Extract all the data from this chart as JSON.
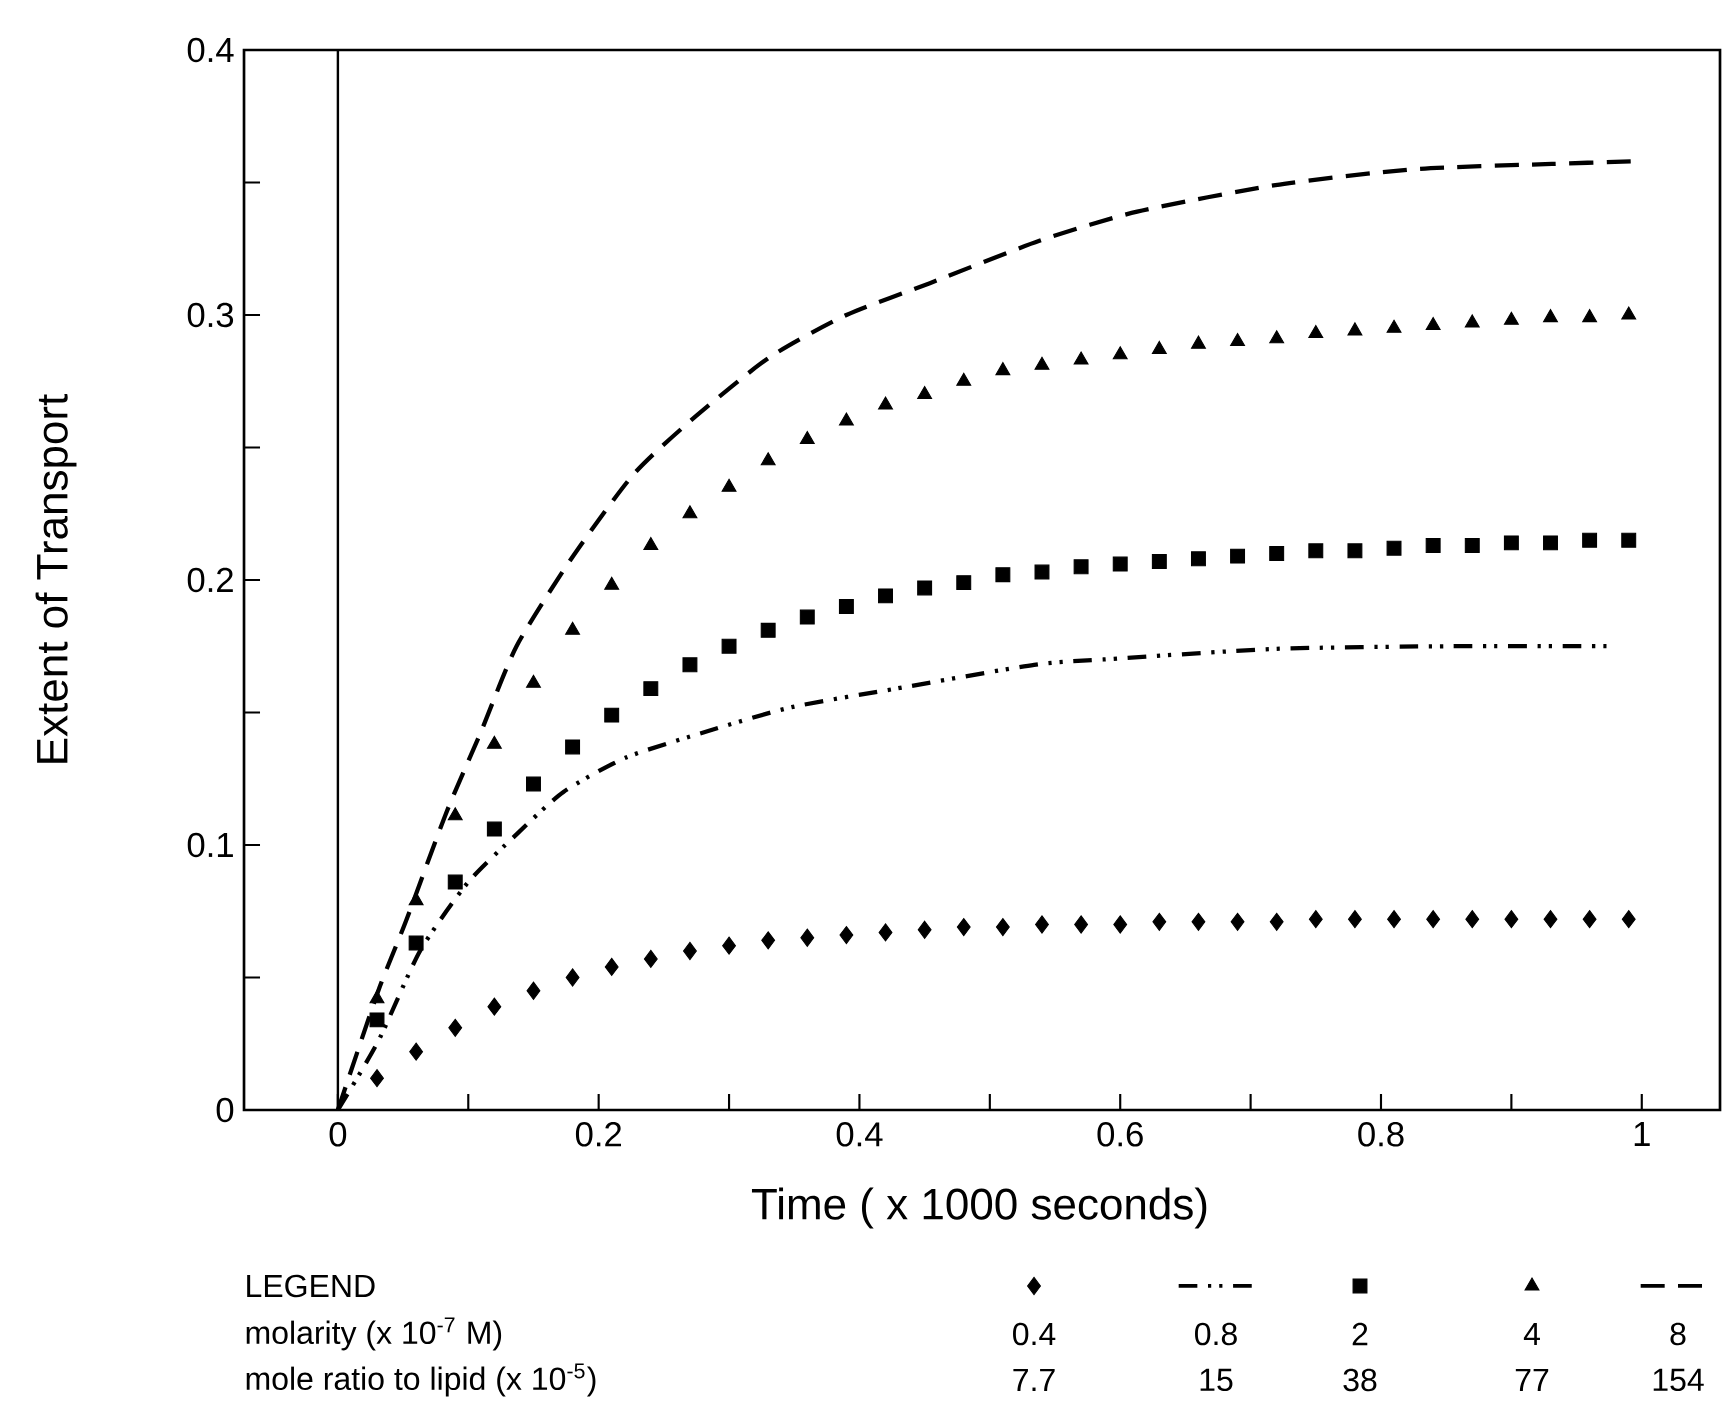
{
  "chart_data": {
    "type": "line",
    "xlabel": "Time ( x 1000 seconds)",
    "ylabel": "Extent of Transport",
    "xlim": [
      -0.072,
      1.06
    ],
    "ylim": [
      0,
      0.4
    ],
    "xticks": [
      0,
      {
        "value": 0.1,
        "label": null
      },
      0.2,
      {
        "value": 0.3,
        "label": null
      },
      0.4,
      {
        "value": 0.5,
        "label": null
      },
      0.6,
      {
        "value": 0.7,
        "label": null
      },
      0.8,
      {
        "value": 0.9,
        "label": null
      },
      1
    ],
    "yticks": [
      0,
      {
        "value": 0.05,
        "label": null
      },
      0.1,
      {
        "value": 0.15,
        "label": null
      },
      0.2,
      {
        "value": 0.25,
        "label": null
      },
      0.3,
      {
        "value": 0.35,
        "label": null
      },
      0.4
    ],
    "grid": false,
    "legend": "bottom",
    "ref_lines": [
      {
        "axis": "x",
        "value": 0,
        "color": "#000000",
        "line_style": "solid"
      }
    ],
    "annotations": [
      "LEGEND",
      "molarity (x 10$^{-7}$ M)",
      "mole ratio to lipid (x 10$^{-5}$)",
      "7.7",
      "15",
      "38",
      "77",
      "154"
    ],
    "series": [
      {
        "name": "0.4",
        "type": "scatter",
        "marker": "diamond",
        "color": "#000000",
        "x": [
          0.03,
          0.06,
          0.09,
          0.12,
          0.15,
          0.18,
          0.21,
          0.24,
          0.27,
          0.3,
          0.33,
          0.36,
          0.39,
          0.42,
          0.45,
          0.48,
          0.51,
          0.54,
          0.57,
          0.6,
          0.63,
          0.66,
          0.69,
          0.72,
          0.75,
          0.78,
          0.81,
          0.84,
          0.87,
          0.9,
          0.93,
          0.96,
          0.99
        ],
        "values": [
          0.012,
          0.022,
          0.031,
          0.039,
          0.045,
          0.05,
          0.054,
          0.057,
          0.06,
          0.062,
          0.064,
          0.065,
          0.066,
          0.067,
          0.068,
          0.069,
          0.069,
          0.07,
          0.07,
          0.07,
          0.071,
          0.071,
          0.071,
          0.071,
          0.072,
          0.072,
          0.072,
          0.072,
          0.072,
          0.072,
          0.072,
          0.072,
          0.072
        ]
      },
      {
        "name": "0.8",
        "marker": "none",
        "line_style": "dashdotted",
        "color": "#000000",
        "x": [
          0,
          0.031,
          0.063,
          0.1,
          0.137,
          0.173,
          0.221,
          0.284,
          0.348,
          0.428,
          0.534,
          0.587,
          0.719,
          0.851,
          0.978
        ],
        "values": [
          0,
          0.026,
          0.06,
          0.086,
          0.104,
          0.12,
          0.133,
          0.143,
          0.152,
          0.159,
          0.168,
          0.17,
          0.174,
          0.175,
          0.175
        ]
      },
      {
        "name": "2",
        "type": "scatter",
        "marker": "square",
        "color": "#000000",
        "x": [
          0.03,
          0.06,
          0.09,
          0.12,
          0.15,
          0.18,
          0.21,
          0.24,
          0.27,
          0.3,
          0.33,
          0.36,
          0.39,
          0.42,
          0.45,
          0.48,
          0.51,
          0.54,
          0.57,
          0.6,
          0.63,
          0.66,
          0.69,
          0.72,
          0.75,
          0.78,
          0.81,
          0.84,
          0.87,
          0.9,
          0.93,
          0.96,
          0.99
        ],
        "values": [
          0.034,
          0.063,
          0.086,
          0.106,
          0.123,
          0.137,
          0.149,
          0.159,
          0.168,
          0.175,
          0.181,
          0.186,
          0.19,
          0.194,
          0.197,
          0.199,
          0.202,
          0.203,
          0.205,
          0.206,
          0.207,
          0.208,
          0.209,
          0.21,
          0.211,
          0.211,
          0.212,
          0.213,
          0.213,
          0.214,
          0.214,
          0.215,
          0.215
        ]
      },
      {
        "name": "4",
        "type": "scatter",
        "marker": "triangle",
        "color": "#000000",
        "x": [
          0.03,
          0.06,
          0.09,
          0.12,
          0.15,
          0.18,
          0.21,
          0.24,
          0.27,
          0.3,
          0.33,
          0.36,
          0.39,
          0.42,
          0.45,
          0.48,
          0.51,
          0.54,
          0.57,
          0.6,
          0.63,
          0.66,
          0.69,
          0.72,
          0.75,
          0.78,
          0.81,
          0.84,
          0.87,
          0.9,
          0.93,
          0.96,
          0.99
        ],
        "values": [
          0.042,
          0.079,
          0.111,
          0.138,
          0.161,
          0.181,
          0.198,
          0.213,
          0.225,
          0.235,
          0.245,
          0.253,
          0.26,
          0.266,
          0.27,
          0.275,
          0.279,
          0.281,
          0.283,
          0.285,
          0.287,
          0.289,
          0.29,
          0.291,
          0.293,
          0.294,
          0.295,
          0.296,
          0.297,
          0.298,
          0.299,
          0.299,
          0.3
        ]
      },
      {
        "name": "8",
        "marker": "none",
        "line_style": "dashed",
        "color": "#000000",
        "x": [
          0,
          0.031,
          0.052,
          0.083,
          0.11,
          0.137,
          0.179,
          0.227,
          0.275,
          0.331,
          0.39,
          0.454,
          0.538,
          0.613,
          0.719,
          0.825,
          0.931,
          0.994
        ],
        "values": [
          0,
          0.045,
          0.071,
          0.112,
          0.143,
          0.175,
          0.208,
          0.24,
          0.262,
          0.284,
          0.3,
          0.312,
          0.328,
          0.339,
          0.349,
          0.355,
          0.357,
          0.358
        ]
      }
    ]
  }
}
